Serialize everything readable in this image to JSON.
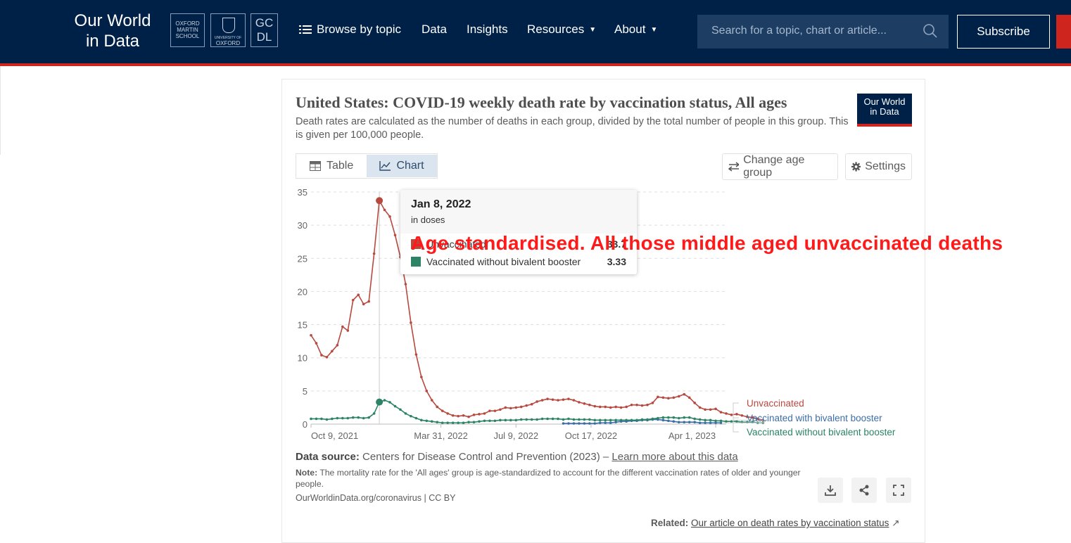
{
  "site": {
    "logo_line1": "Our World",
    "logo_line2": "in Data",
    "partners": {
      "oms": [
        "OXFORD",
        "MARTIN",
        "SCHOOL"
      ],
      "ox_line1": "UNIVERSITY OF",
      "ox_line2": "OXFORD",
      "gc_line1": "GC",
      "gc_line2": "DL"
    },
    "nav": {
      "browse": "Browse by topic",
      "data": "Data",
      "insights": "Insights",
      "resources": "Resources",
      "about": "About"
    },
    "search_placeholder": "Search for a topic, chart or article...",
    "subscribe": "Subscribe",
    "colors": {
      "navy": "#002147",
      "red": "#ce261e"
    }
  },
  "card": {
    "title": "United States: COVID-19 weekly death rate by vaccination status, All ages",
    "subtitle": "Death rates are calculated as the number of deaths in each group, divided by the total number of people in this group. This is given per 100,000 people.",
    "badge_line1": "Our World",
    "badge_line2": "in Data",
    "tab_table": "Table",
    "tab_chart": "Chart",
    "btn_change_age": "Change age group",
    "btn_settings": "Settings"
  },
  "tooltip": {
    "date": "Jan 8, 2022",
    "unit": "in doses",
    "row1_name": "Unvaccinated",
    "row1_value": "33.7",
    "row2_name": "Vaccinated without bivalent booster",
    "row2_value": "3.33"
  },
  "annotation": "Age standardised. All those middle aged unvaccinated deaths",
  "footer": {
    "source_label": "Data source:",
    "source_text": "Centers for Disease Control and Prevention (2023) –",
    "source_link": "Learn more about this data",
    "note_label": "Note:",
    "note_text": "The mortality rate for the 'All ages' group is age-standardized to account for the different vaccination rates of older and younger people.",
    "origin": "OurWorldinData.org/coronavirus | CC BY",
    "related_label": "Related:",
    "related_link": "Our article on death rates by vaccination status"
  },
  "chart_data": {
    "type": "line",
    "title": "United States: COVID-19 weekly death rate by vaccination status, All ages",
    "xlabel": "",
    "ylabel": "",
    "ylim": [
      0,
      35
    ],
    "yticks": [
      0,
      5,
      10,
      15,
      20,
      25,
      30,
      35
    ],
    "xticks": [
      "Oct 9, 2021",
      "Mar 31, 2022",
      "Jul 9, 2022",
      "Oct 17, 2022",
      "Apr 1, 2023"
    ],
    "x_start": "2021-10-09",
    "x_end": "2023-04-15",
    "grid": "horizontal dashed",
    "legend_placement": "right, line-end labels",
    "highlight": {
      "date": "2022-01-08"
    },
    "colors": {
      "Unvaccinated": "#b8493f",
      "Vaccinated with bivalent booster": "#3b6ea8",
      "Vaccinated without bivalent booster": "#2c8465"
    },
    "series": [
      {
        "name": "Unvaccinated",
        "start": "2021-10-09",
        "interval_days": 7,
        "values": [
          13.4,
          12.2,
          10.4,
          10.1,
          11.0,
          11.9,
          14.7,
          14.1,
          18.7,
          19.5,
          18.1,
          18.5,
          25.7,
          33.7,
          32.3,
          31.3,
          28.5,
          25.2,
          21.1,
          15.3,
          10.5,
          7.1,
          5.0,
          3.6,
          2.6,
          2.0,
          1.6,
          1.3,
          1.2,
          1.3,
          1.1,
          1.4,
          1.5,
          1.6,
          2.0,
          2.0,
          2.2,
          2.5,
          2.4,
          2.5,
          2.6,
          2.8,
          3.0,
          3.4,
          3.6,
          3.8,
          3.7,
          3.6,
          3.7,
          3.8,
          3.6,
          3.3,
          3.1,
          2.9,
          2.7,
          2.6,
          2.6,
          2.5,
          2.6,
          2.5,
          2.6,
          2.9,
          2.9,
          2.8,
          2.9,
          3.2,
          4.1,
          4.0,
          3.9,
          4.0,
          4.2,
          4.5,
          4.0,
          3.2,
          2.5,
          2.2,
          2.2,
          2.3,
          1.8,
          1.6,
          1.4,
          1.5,
          1.3,
          1.1,
          1.0,
          0.8,
          0.6
        ]
      },
      {
        "name": "Vaccinated with bivalent booster",
        "start": "2022-09-10",
        "interval_days": 7,
        "values": [
          0.1,
          0.1,
          0.1,
          0.1,
          0.1,
          0.1,
          0.1,
          0.2,
          0.2,
          0.2,
          0.3,
          0.4,
          0.4,
          0.5,
          0.5,
          0.6,
          0.6,
          0.7,
          0.7,
          0.6,
          0.5,
          0.4,
          0.3,
          0.3,
          0.3,
          0.3,
          0.2,
          0.2,
          0.2,
          0.2,
          0.2
        ]
      },
      {
        "name": "Vaccinated without bivalent booster",
        "start": "2021-10-09",
        "interval_days": 7,
        "values": [
          0.8,
          0.8,
          0.8,
          0.7,
          0.8,
          0.9,
          0.9,
          0.9,
          1.0,
          1.0,
          0.9,
          1.0,
          1.6,
          3.33,
          3.6,
          3.3,
          2.7,
          2.2,
          1.6,
          1.2,
          0.9,
          0.6,
          0.5,
          0.4,
          0.3,
          0.2,
          0.2,
          0.2,
          0.2,
          0.2,
          0.3,
          0.3,
          0.4,
          0.5,
          0.5,
          0.5,
          0.6,
          0.6,
          0.6,
          0.6,
          0.7,
          0.7,
          0.7,
          0.7,
          0.8,
          0.8,
          0.8,
          0.8,
          0.7,
          0.8,
          0.7,
          0.7,
          0.7,
          0.7,
          0.6,
          0.6,
          0.6,
          0.6,
          0.6,
          0.6,
          0.6,
          0.6,
          0.6,
          0.7,
          0.7,
          0.8,
          0.9,
          1.0,
          1.0,
          1.0,
          0.9,
          1.0,
          1.0,
          0.8,
          0.7,
          0.6,
          0.6,
          0.5,
          0.5,
          0.4,
          0.4,
          0.4,
          0.3,
          0.3,
          0.3,
          0.2,
          0.2
        ]
      }
    ]
  }
}
